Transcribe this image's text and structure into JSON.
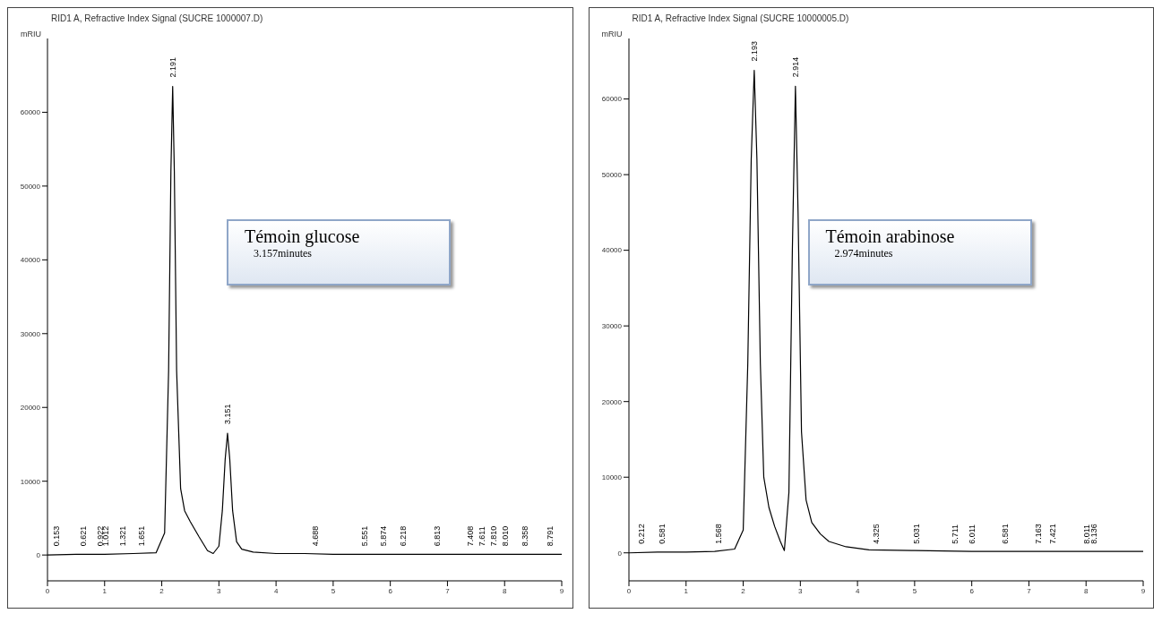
{
  "chart_data": [
    {
      "type": "line",
      "title": "RID1 A, Refractive Index Signal (SUCRE 1000007.D)",
      "ylabel": "mRIU",
      "x": [
        0,
        0.5,
        1.0,
        1.5,
        1.9,
        2.05,
        2.12,
        2.16,
        2.191,
        2.22,
        2.26,
        2.33,
        2.4,
        2.5,
        2.65,
        2.8,
        2.9,
        3.0,
        3.06,
        3.11,
        3.151,
        3.19,
        3.24,
        3.31,
        3.4,
        3.6,
        4.0,
        4.5,
        5.0,
        6.0,
        7.0,
        8.0,
        9.0
      ],
      "series": [
        {
          "color": "#000000",
          "values": [
            0,
            100,
            100,
            200,
            300,
            3000,
            25000,
            52000,
            63500,
            52000,
            25000,
            9000,
            6000,
            4500,
            2500,
            600,
            200,
            1200,
            6000,
            13000,
            16500,
            13000,
            6000,
            1800,
            800,
            400,
            200,
            200,
            100,
            100,
            100,
            100,
            100
          ]
        }
      ],
      "xlim": [
        0,
        9
      ],
      "xticks": [
        0,
        1,
        2,
        3,
        4,
        5,
        6,
        7,
        8,
        9
      ],
      "ylim": [
        -3500,
        70000
      ],
      "yticks": [
        0,
        10000,
        20000,
        30000,
        40000,
        50000,
        60000
      ],
      "annotations": [
        {
          "text": "0.153",
          "x": 0.153,
          "y": 0
        },
        {
          "text": "0.621",
          "x": 0.621,
          "y": 0
        },
        {
          "text": "0.922",
          "x": 0.922,
          "y": 0
        },
        {
          "text": "1.012",
          "x": 1.012,
          "y": 0
        },
        {
          "text": "1.321",
          "x": 1.321,
          "y": 0
        },
        {
          "text": "1.651",
          "x": 1.651,
          "y": 0
        },
        {
          "text": "2.191",
          "x": 2.191,
          "y": 63500
        },
        {
          "text": "3.151",
          "x": 3.151,
          "y": 16500
        },
        {
          "text": "4.688",
          "x": 4.688,
          "y": 0
        },
        {
          "text": "5.551",
          "x": 5.551,
          "y": 0
        },
        {
          "text": "5.874",
          "x": 5.874,
          "y": 0
        },
        {
          "text": "6.218",
          "x": 6.218,
          "y": 0
        },
        {
          "text": "6.813",
          "x": 6.813,
          "y": 0
        },
        {
          "text": "7.408",
          "x": 7.408,
          "y": 0
        },
        {
          "text": "7.611",
          "x": 7.611,
          "y": 0
        },
        {
          "text": "7.810",
          "x": 7.81,
          "y": 0
        },
        {
          "text": "8.010",
          "x": 8.01,
          "y": 0
        },
        {
          "text": "8.358",
          "x": 8.358,
          "y": 0
        },
        {
          "text": "8.791",
          "x": 8.791,
          "y": 0
        },
        "Témoin glucose",
        "3.157minutes"
      ]
    },
    {
      "type": "line",
      "title": "RID1 A, Refractive Index Signal (SUCRE 10000005.D)",
      "ylabel": "mRIU",
      "x": [
        0,
        0.5,
        1.0,
        1.5,
        1.85,
        2.0,
        2.08,
        2.14,
        2.193,
        2.24,
        2.3,
        2.36,
        2.45,
        2.55,
        2.65,
        2.72,
        2.8,
        2.86,
        2.914,
        2.96,
        3.02,
        3.1,
        3.2,
        3.35,
        3.5,
        3.8,
        4.2,
        5.0,
        6.0,
        7.0,
        8.0,
        9.0
      ],
      "series": [
        {
          "color": "#000000",
          "values": [
            0,
            100,
            100,
            200,
            500,
            3000,
            25000,
            52000,
            63800,
            52000,
            25000,
            10000,
            6000,
            3500,
            1500,
            300,
            8000,
            40000,
            61700,
            45000,
            16000,
            7000,
            4000,
            2500,
            1500,
            800,
            400,
            300,
            200,
            200,
            200,
            200
          ]
        }
      ],
      "xlim": [
        0,
        9
      ],
      "xticks": [
        0,
        1,
        2,
        3,
        4,
        5,
        6,
        7,
        8,
        9
      ],
      "ylim": [
        -3700,
        68000
      ],
      "yticks": [
        0,
        10000,
        20000,
        30000,
        40000,
        50000,
        60000
      ],
      "annotations": [
        {
          "text": "0.212",
          "x": 0.212,
          "y": 0
        },
        {
          "text": "0.581",
          "x": 0.581,
          "y": 0
        },
        {
          "text": "1.568",
          "x": 1.568,
          "y": 0
        },
        {
          "text": "2.193",
          "x": 2.193,
          "y": 63800
        },
        {
          "text": "2.914",
          "x": 2.914,
          "y": 61700
        },
        {
          "text": "4.325",
          "x": 4.325,
          "y": 0
        },
        {
          "text": "5.031",
          "x": 5.031,
          "y": 0
        },
        {
          "text": "5.711",
          "x": 5.711,
          "y": 0
        },
        {
          "text": "6.011",
          "x": 6.011,
          "y": 0
        },
        {
          "text": "6.581",
          "x": 6.581,
          "y": 0
        },
        {
          "text": "7.163",
          "x": 7.163,
          "y": 0
        },
        {
          "text": "7.421",
          "x": 7.421,
          "y": 0
        },
        {
          "text": "8.011",
          "x": 8.011,
          "y": 0
        },
        {
          "text": "8.136",
          "x": 8.136,
          "y": 0
        },
        "Témoin arabinose",
        "2.974minutes"
      ]
    }
  ]
}
